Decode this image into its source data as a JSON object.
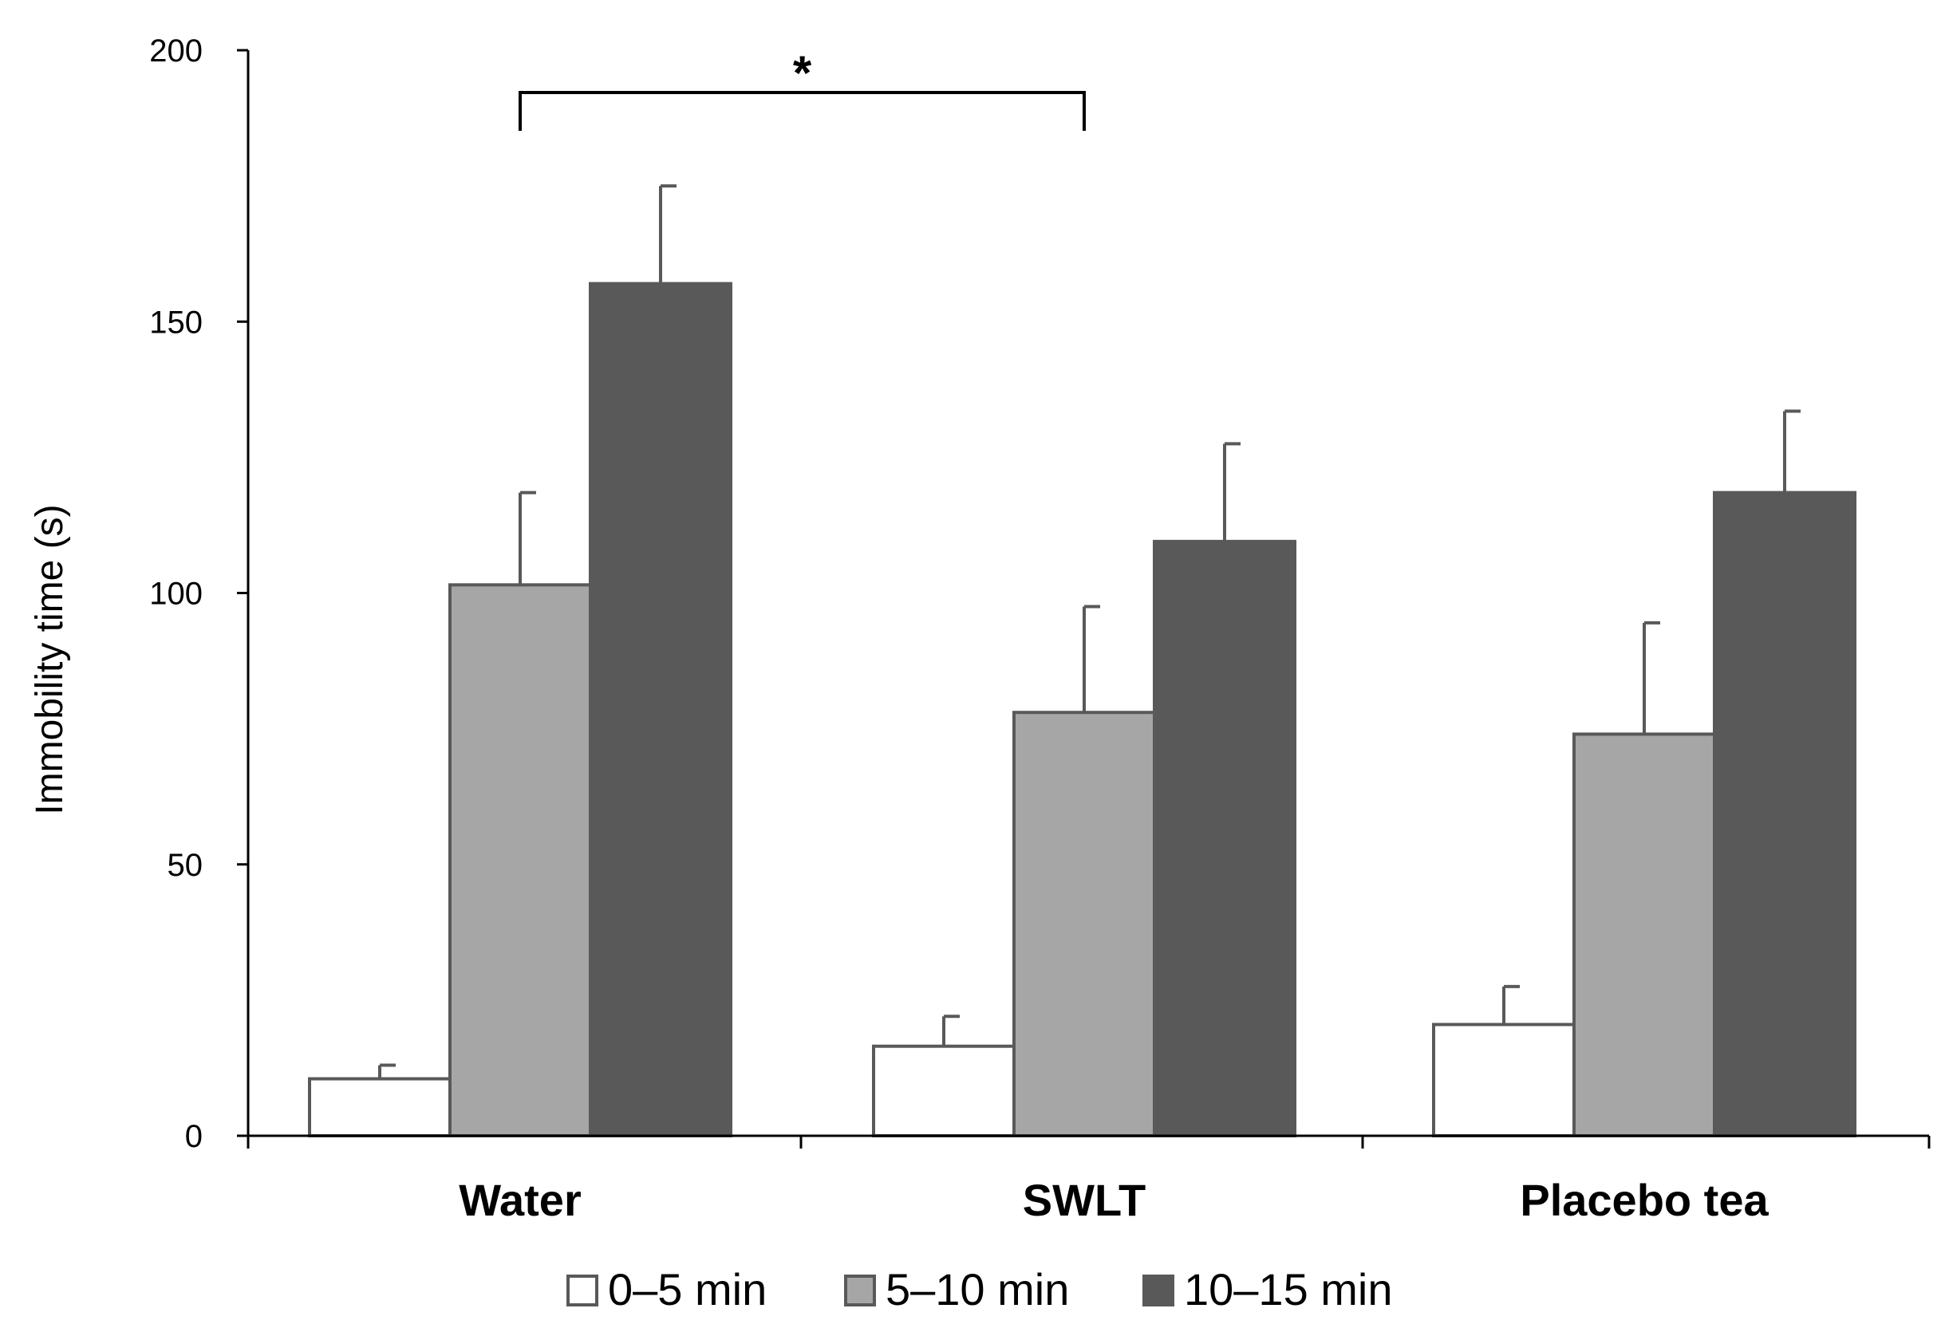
{
  "chart_data": {
    "type": "bar",
    "title": "",
    "xlabel": "",
    "ylabel": "Immobility time (s)",
    "ylim": [
      0,
      200
    ],
    "yticks": [
      "0",
      "50",
      "100",
      "150",
      "200"
    ],
    "categories": [
      "Water",
      "SWLT",
      "Placebo tea"
    ],
    "series": [
      {
        "name": "0–5 min",
        "values": [
          10.5,
          16.5,
          20.5
        ],
        "errors": [
          2.5,
          5.5,
          7.0
        ],
        "color": "#ffffff"
      },
      {
        "name": "5–10 min",
        "values": [
          101.5,
          78.0,
          74.0
        ],
        "errors": [
          17.0,
          19.5,
          20.5
        ],
        "color": "#a6a6a6"
      },
      {
        "name": "10–15 min",
        "values": [
          157.0,
          109.5,
          118.5
        ],
        "errors": [
          18.0,
          18.0,
          15.0
        ],
        "color": "#595959"
      }
    ],
    "significance": {
      "label": "*",
      "from_category": "Water",
      "to_category": "SWLT"
    },
    "grid": false,
    "legend_position": "bottom-center",
    "colors": {
      "axis": "#000000",
      "bar_edge": "#595959",
      "error_bar": "#595959"
    }
  }
}
